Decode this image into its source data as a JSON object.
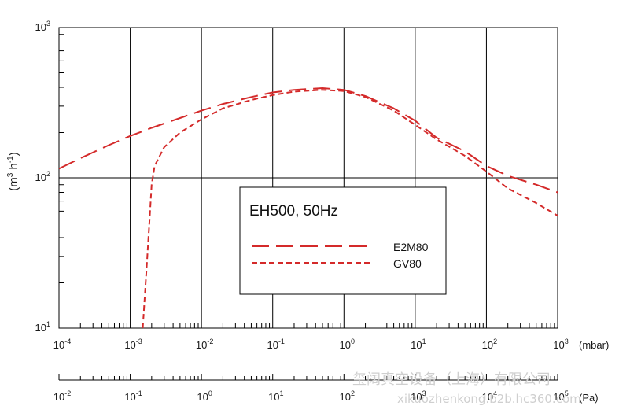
{
  "chart_data": {
    "type": "line",
    "x_scale": "log",
    "y_scale": "log",
    "xlim": [
      0.0001,
      1000
    ],
    "ylim": [
      10,
      1000
    ],
    "grid": true,
    "ylabel_base": "(m",
    "ylabel_exp1": "3",
    "ylabel_mid": " h",
    "ylabel_exp2": "-1",
    "ylabel_end": ")",
    "xlabel": "(mbar)",
    "x2label": "(Pa)",
    "x_ticks": [
      {
        "base": "10",
        "exp": "-4"
      },
      {
        "base": "10",
        "exp": "-3"
      },
      {
        "base": "10",
        "exp": "-2"
      },
      {
        "base": "10",
        "exp": "-1"
      },
      {
        "base": "10",
        "exp": "0"
      },
      {
        "base": "10",
        "exp": "1"
      },
      {
        "base": "10",
        "exp": "2"
      },
      {
        "base": "10",
        "exp": "3"
      }
    ],
    "x2_ticks": [
      {
        "base": "10",
        "exp": "-2"
      },
      {
        "base": "10",
        "exp": "-1"
      },
      {
        "base": "10",
        "exp": "0"
      },
      {
        "base": "10",
        "exp": "1"
      },
      {
        "base": "10",
        "exp": "2"
      },
      {
        "base": "10",
        "exp": "3"
      },
      {
        "base": "10",
        "exp": "4"
      },
      {
        "base": "10",
        "exp": "5"
      }
    ],
    "y_ticks": [
      {
        "base": "10",
        "exp": "1"
      },
      {
        "base": "10",
        "exp": "2"
      },
      {
        "base": "10",
        "exp": "3"
      }
    ],
    "legend_title": "EH500, 50Hz",
    "legend_placement": "center",
    "series": [
      {
        "name": "E2M80",
        "color": "#d42a2a",
        "dash": "long",
        "points": [
          [
            0.0001,
            115
          ],
          [
            0.0002,
            135
          ],
          [
            0.0005,
            165
          ],
          [
            0.001,
            190
          ],
          [
            0.002,
            215
          ],
          [
            0.005,
            250
          ],
          [
            0.01,
            280
          ],
          [
            0.02,
            310
          ],
          [
            0.05,
            345
          ],
          [
            0.1,
            370
          ],
          [
            0.2,
            385
          ],
          [
            0.5,
            395
          ],
          [
            1,
            385
          ],
          [
            2,
            350
          ],
          [
            5,
            290
          ],
          [
            10,
            240
          ],
          [
            20,
            185
          ],
          [
            50,
            150
          ],
          [
            100,
            120
          ],
          [
            200,
            103
          ],
          [
            500,
            90
          ],
          [
            1000,
            80
          ]
        ]
      },
      {
        "name": "GV80",
        "color": "#d42a2a",
        "dash": "short",
        "points": [
          [
            0.0015,
            10
          ],
          [
            0.0017,
            25
          ],
          [
            0.0019,
            60
          ],
          [
            0.002,
            90
          ],
          [
            0.0022,
            120
          ],
          [
            0.003,
            160
          ],
          [
            0.005,
            200
          ],
          [
            0.01,
            245
          ],
          [
            0.02,
            290
          ],
          [
            0.05,
            330
          ],
          [
            0.1,
            355
          ],
          [
            0.2,
            375
          ],
          [
            0.5,
            385
          ],
          [
            1,
            378
          ],
          [
            2,
            345
          ],
          [
            5,
            280
          ],
          [
            10,
            225
          ],
          [
            20,
            180
          ],
          [
            50,
            140
          ],
          [
            100,
            110
          ],
          [
            200,
            85
          ],
          [
            500,
            68
          ],
          [
            1000,
            56
          ]
        ]
      }
    ]
  },
  "watermark_line1": "玺阔真空设备（上海）有限公司",
  "watermark_line2": "xikuozhenkong.b2b.hc360.com"
}
